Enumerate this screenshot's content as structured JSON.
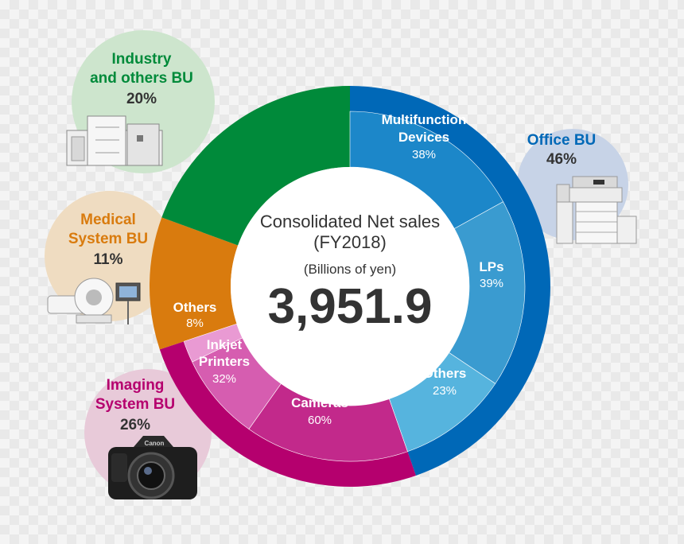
{
  "chart_data": {
    "type": "pie",
    "subtype": "nested-donut",
    "title": "Consolidated Net sales",
    "subtitle": "(FY2018)",
    "unit_label": "(Billions of yen)",
    "total": "3,951.9",
    "outer_ring": [
      {
        "name": "Office BU",
        "value": 46,
        "value_label": "46%",
        "color": "#0068b7"
      },
      {
        "name": "Imaging System BU",
        "value": 26,
        "value_label": "26%",
        "color": "#b5006e"
      },
      {
        "name": "Medical System BU",
        "value": 11,
        "value_label": "11%",
        "color": "#d97b0e"
      },
      {
        "name": "Industry and others BU",
        "value": 20,
        "value_label": "20%",
        "color": "#008a3a"
      }
    ],
    "inner_ring": [
      {
        "group": "Office BU",
        "name": "Multifunction Devices",
        "value": 38,
        "value_label": "38%",
        "color": "#1c87c9"
      },
      {
        "group": "Office BU",
        "name": "LPs",
        "value": 39,
        "value_label": "39%",
        "color": "#3a9bd0"
      },
      {
        "group": "Office BU",
        "name": "Others",
        "value": 23,
        "value_label": "23%",
        "color": "#56b4de"
      },
      {
        "group": "Imaging System BU",
        "name": "Cameras",
        "value": 60,
        "value_label": "60%",
        "color": "#c2298b"
      },
      {
        "group": "Imaging System BU",
        "name": "Inkjet Printers",
        "value": 32,
        "value_label": "32%",
        "color": "#d65db0"
      },
      {
        "group": "Imaging System BU",
        "name": "Others",
        "value": 8,
        "value_label": "8%",
        "color": "#e99ad3"
      }
    ],
    "bubbles": [
      {
        "name_lines": [
          "Office BU"
        ],
        "value_label": "46%",
        "title_color": "#0068b7",
        "fill": "#c7d3e7",
        "icon": "office-printer-icon"
      },
      {
        "name_lines": [
          "Industry",
          "and others BU"
        ],
        "value_label": "20%",
        "title_color": "#008a3a",
        "fill": "#cde5cd",
        "icon": "industrial-equipment-icon"
      },
      {
        "name_lines": [
          "Medical",
          "System BU"
        ],
        "value_label": "11%",
        "title_color": "#d97b0e",
        "fill": "#efdcc1",
        "icon": "ct-scanner-icon"
      },
      {
        "name_lines": [
          "Imaging",
          "System BU"
        ],
        "value_label": "26%",
        "title_color": "#b5006e",
        "fill": "#e8cad9",
        "icon": "camera-icon"
      }
    ],
    "inner_labels": [
      {
        "lines": [
          "Multifunction",
          "Devices"
        ],
        "pct": "38%"
      },
      {
        "lines": [
          "LPs"
        ],
        "pct": "39%"
      },
      {
        "lines": [
          "Others"
        ],
        "pct": "23%"
      },
      {
        "lines": [
          "Cameras"
        ],
        "pct": "60%"
      },
      {
        "lines": [
          "Inkjet",
          "Printers"
        ],
        "pct": "32%"
      },
      {
        "lines": [
          "Others"
        ],
        "pct": "8%"
      }
    ]
  }
}
